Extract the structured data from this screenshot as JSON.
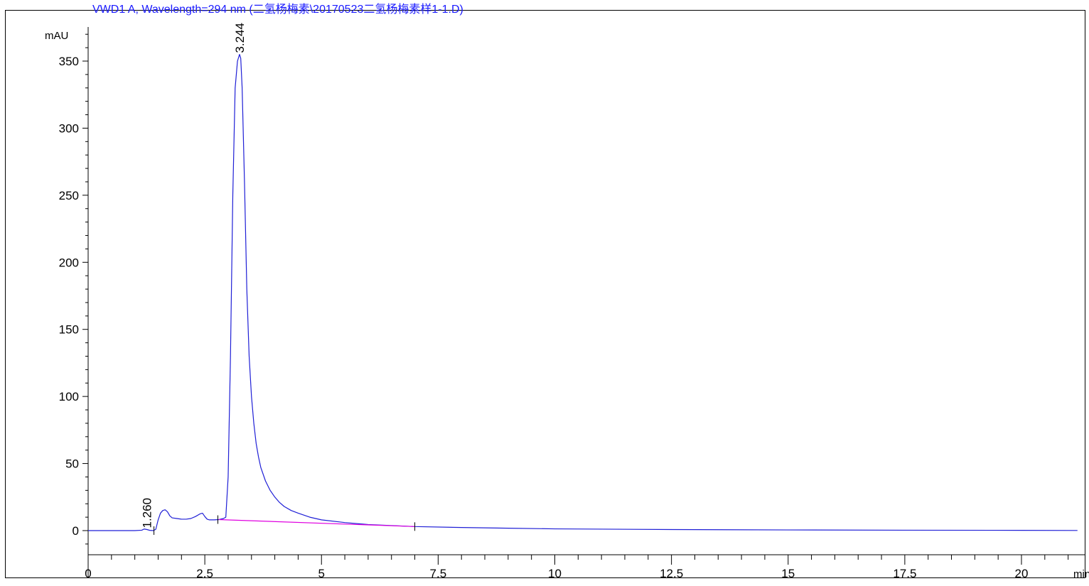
{
  "chart_data": {
    "type": "line",
    "title": "VWD1 A, Wavelength=294 nm (二氢杨梅素\\20170523二氢杨梅素样1-1.D)",
    "xlabel": "min",
    "ylabel": "mAU",
    "xlim": [
      0,
      21.2
    ],
    "ylim": [
      -18,
      375
    ],
    "x_ticks": [
      "0",
      "2.5",
      "5",
      "7.5",
      "10",
      "12.5",
      "15",
      "17.5",
      "20"
    ],
    "y_ticks": [
      "0",
      "50",
      "100",
      "150",
      "200",
      "250",
      "300",
      "350"
    ],
    "grid": false,
    "legend": "none",
    "colors": {
      "signal": "#1f1fd6",
      "baseline": "#e000e0",
      "title": "#1a1aff",
      "axis": "#000000"
    },
    "peak_labels": [
      {
        "label": "1.260",
        "x": 1.26,
        "y": 0.8
      },
      {
        "label": "3.244",
        "x": 3.244,
        "y": 355
      }
    ],
    "series": [
      {
        "name": "signal",
        "x": [
          0,
          0.5,
          1.0,
          1.15,
          1.2,
          1.26,
          1.32,
          1.4,
          1.45,
          1.5,
          1.55,
          1.6,
          1.65,
          1.7,
          1.75,
          1.8,
          1.9,
          2.0,
          2.1,
          2.2,
          2.3,
          2.4,
          2.45,
          2.5,
          2.55,
          2.6,
          2.7,
          2.8,
          2.9,
          2.95,
          3.0,
          3.05,
          3.1,
          3.15,
          3.2,
          3.244,
          3.27,
          3.3,
          3.35,
          3.4,
          3.45,
          3.5,
          3.55,
          3.6,
          3.65,
          3.7,
          3.8,
          3.9,
          4.0,
          4.1,
          4.2,
          4.35,
          4.5,
          4.75,
          5.0,
          5.5,
          6.0,
          7.0,
          8.0,
          9.0,
          10.0,
          12.5,
          15.0,
          17.5,
          20.0,
          21.2
        ],
        "y": [
          0,
          0,
          0,
          0.3,
          1.2,
          0.8,
          0.2,
          0,
          1,
          8,
          13,
          15,
          15.5,
          14,
          11,
          9.5,
          9,
          8.5,
          8.5,
          9,
          10.5,
          12.5,
          13,
          10.5,
          8.5,
          8,
          8,
          8.2,
          9,
          10,
          40,
          130,
          250,
          330,
          350,
          355,
          352,
          330,
          260,
          180,
          130,
          100,
          80,
          65,
          55,
          47,
          37,
          30,
          25,
          21,
          18,
          15,
          13,
          10,
          8,
          6,
          4.5,
          3,
          2.3,
          1.8,
          1.3,
          0.8,
          0.5,
          0.3,
          0.2,
          0.1
        ]
      },
      {
        "name": "baseline",
        "x": [
          2.8,
          7.0
        ],
        "y": [
          8.2,
          3
        ]
      }
    ]
  }
}
